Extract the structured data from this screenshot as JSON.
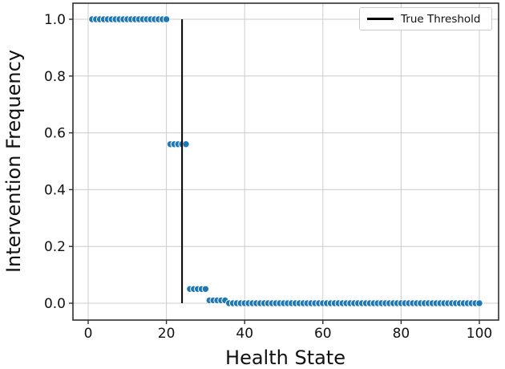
{
  "chart_data": {
    "type": "scatter",
    "title": "",
    "xlabel": "Health State",
    "ylabel": "Intervention Frequency",
    "xlim": [
      -4.5,
      105
    ],
    "ylim": [
      -0.06,
      1.06
    ],
    "grid": true,
    "legend_position": "upper right",
    "x_ticks": [
      {
        "value": 0,
        "label": "0"
      },
      {
        "value": 20,
        "label": "20"
      },
      {
        "value": 40,
        "label": "40"
      },
      {
        "value": 60,
        "label": "60"
      },
      {
        "value": 80,
        "label": "80"
      },
      {
        "value": 100,
        "label": "100"
      }
    ],
    "y_ticks": [
      {
        "value": 0.0,
        "label": "0.0"
      },
      {
        "value": 0.2,
        "label": "0.2"
      },
      {
        "value": 0.4,
        "label": "0.4"
      },
      {
        "value": 0.6,
        "label": "0.6"
      },
      {
        "value": 0.8,
        "label": "0.8"
      },
      {
        "value": 1.0,
        "label": "1.0"
      }
    ],
    "series": [
      {
        "name": "intervention-frequency-points",
        "marker": "circle",
        "color": "#1f77b4",
        "edge_color": "#ffffff",
        "segments": [
          {
            "x_start": 1,
            "x_end": 20,
            "step": 1,
            "y": 1.0
          },
          {
            "x_start": 21,
            "x_end": 25,
            "step": 1,
            "y": 0.56
          },
          {
            "x_start": 26,
            "x_end": 30,
            "step": 1,
            "y": 0.05
          },
          {
            "x_start": 31,
            "x_end": 35,
            "step": 1,
            "y": 0.01
          },
          {
            "x_start": 36,
            "x_end": 100,
            "step": 1,
            "y": 0.0
          }
        ]
      }
    ],
    "threshold_line": {
      "x": 24,
      "y_from": 0.0,
      "y_to": 1.0,
      "color": "#000000",
      "label": "True Threshold"
    },
    "colors": {
      "point": "#1f77b4",
      "point_edge": "#ffffff",
      "grid": "#cccccc",
      "spine": "#2e2e2e",
      "tick": "#2e2e2e",
      "text": "#111111",
      "background": "#ffffff"
    }
  },
  "legend": {
    "items": [
      {
        "label": "True Threshold",
        "swatch": "line",
        "color": "#000000"
      }
    ]
  }
}
